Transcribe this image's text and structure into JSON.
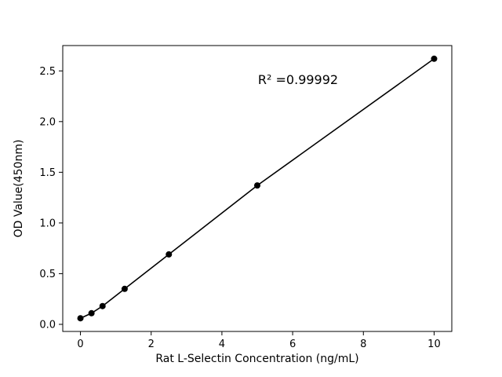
{
  "figure": {
    "background": "#ffffff"
  },
  "chart_data": {
    "type": "scatter",
    "title": "",
    "xlabel": "Rat L-Selectin Concentration (ng/mL)",
    "ylabel": "OD Value(450nm)",
    "annotation": "R² =0.99992",
    "x": [
      0,
      0.3125,
      0.625,
      1.25,
      2.5,
      5,
      10
    ],
    "y": [
      0.06,
      0.11,
      0.18,
      0.35,
      0.69,
      1.37,
      2.62
    ],
    "line": true,
    "xlim": [
      -0.5,
      10.5
    ],
    "ylim": [
      -0.07,
      2.75
    ],
    "xtick_values": [
      0,
      2,
      4,
      6,
      8,
      10
    ],
    "xtick_labels": [
      "0",
      "2",
      "4",
      "6",
      "8",
      "10"
    ],
    "ytick_values": [
      0.0,
      0.5,
      1.0,
      1.5,
      2.0,
      2.5
    ],
    "ytick_labels": [
      "0.0",
      "0.5",
      "1.0",
      "1.5",
      "2.0",
      "2.5"
    ],
    "marker_color": "#000000",
    "line_color": "#000000",
    "frame_color": "#000000",
    "grid": false,
    "legend": "none"
  }
}
